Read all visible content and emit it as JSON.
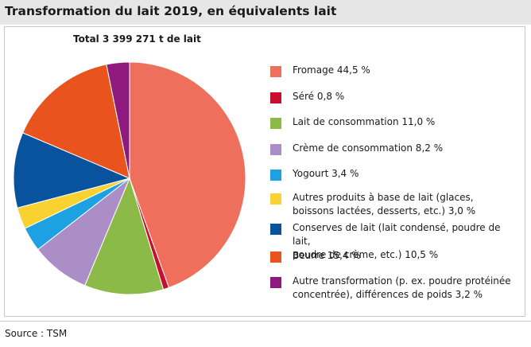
{
  "header": {
    "title": "Transformation du lait 2019, en équivalents lait"
  },
  "total_label": "Total 3 399 271 t de lait",
  "source": "Source : TSM",
  "chart_data": {
    "type": "pie",
    "title": "Transformation du lait 2019, en équivalents lait",
    "subtitle": "Total 3 399 271 t de lait",
    "unit": "%",
    "legend_position": "right",
    "slices": [
      {
        "label": "Fromage 44,5 %",
        "value": 44.5,
        "color": "#ee6f5c"
      },
      {
        "label": "Séré 0,8 %",
        "value": 0.8,
        "color": "#c8102e"
      },
      {
        "label": "Lait de consommation 11,0 %",
        "value": 11.0,
        "color": "#8cba48"
      },
      {
        "label": "Crème de consommation 8,2 %",
        "value": 8.2,
        "color": "#ab8ec6"
      },
      {
        "label": "Yogourt 3,4 %",
        "value": 3.4,
        "color": "#1ea1e2"
      },
      {
        "label": "Autres produits à base de lait (glaces,\nboissons lactées, desserts, etc.) 3,0 %",
        "value": 3.0,
        "color": "#f9d131"
      },
      {
        "label": "Conserves de lait (lait condensé, poudre de lait,\npoudre de crème, etc.) 10,5 %",
        "value": 10.5,
        "color": "#08529e"
      },
      {
        "label": "Beurre 15,4 %",
        "value": 15.4,
        "color": "#e9541e"
      },
      {
        "label": "Autre transformation (p. ex. poudre protéinée\nconcentrée), différences de poids 3,2 %",
        "value": 3.2,
        "color": "#8d1a7c"
      }
    ]
  }
}
